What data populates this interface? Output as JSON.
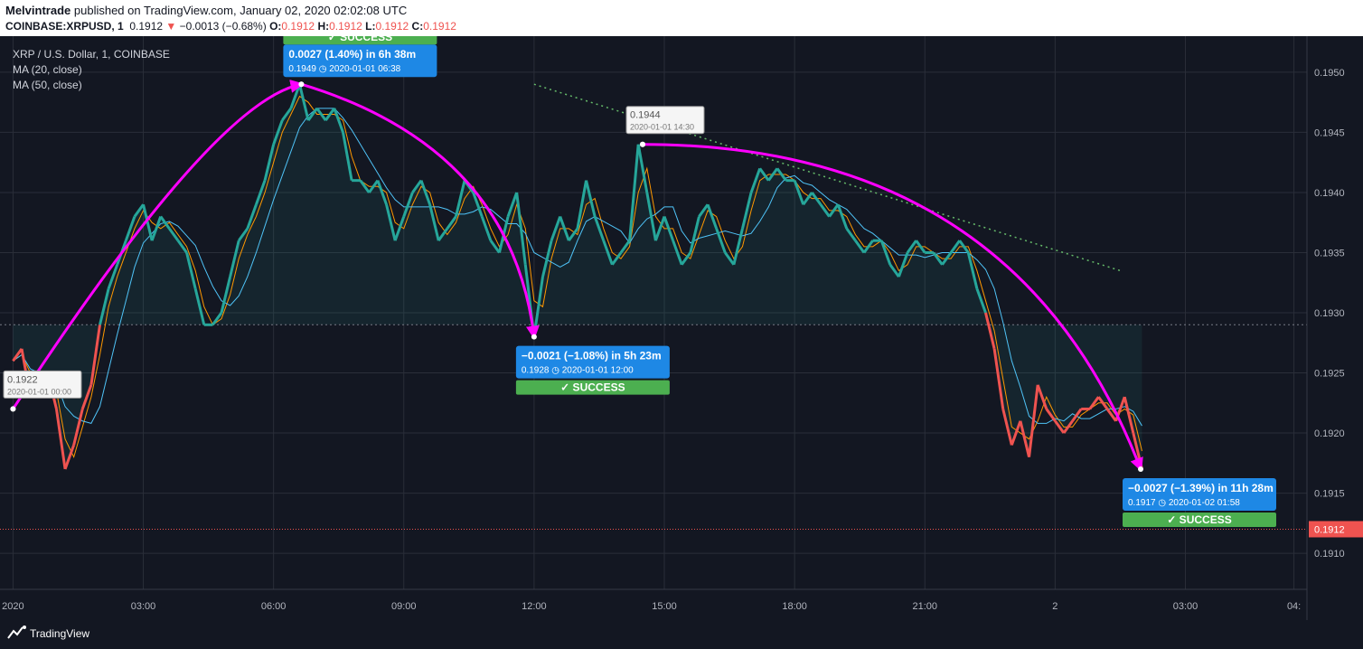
{
  "header": {
    "author": "Melvintrade",
    "published": "published on TradingView.com, January 02, 2020 02:02:08 UTC",
    "symbol": "COINBASE:XRPUSD, 1",
    "last": "0.1912",
    "change": "−0.0013 (−0.68%)",
    "o_label": "O:",
    "o": "0.1912",
    "h_label": "H:",
    "h": "0.1912",
    "l_label": "L:",
    "l": "0.1912",
    "c_label": "C:",
    "c": "0.1912"
  },
  "legend": {
    "title": "XRP / U.S. Dollar, 1, COINBASE",
    "ma20": "MA (20, close)",
    "ma50": "MA (50, close)"
  },
  "footer": {
    "brand": "TradingView"
  },
  "colors": {
    "background": "#131722",
    "up": "#26a69a",
    "down": "#ef5350",
    "ma20": "#ff9800",
    "ma50": "#4fc3f7",
    "annotation_curve": "#ff00ff",
    "callout": "#1e88e5",
    "success": "#4caf50",
    "trendline": "#66bb6a"
  },
  "chart_data": {
    "type": "line",
    "title": "XRP / U.S. Dollar, 1, COINBASE",
    "ylim": [
      0.1907,
      0.1953
    ],
    "y_ticks": [
      "0.1910",
      "0.1915",
      "0.1920",
      "0.1925",
      "0.1930",
      "0.1935",
      "0.1940",
      "0.1945",
      "0.1950"
    ],
    "x_ticks": [
      "2020",
      "03:00",
      "06:00",
      "09:00",
      "12:00",
      "15:00",
      "18:00",
      "21:00",
      "2",
      "03:00",
      "04:"
    ],
    "x_tick_hours": [
      0,
      3,
      6,
      9,
      12,
      15,
      18,
      21,
      24,
      27,
      29.5
    ],
    "x_range_hours": [
      -0.3,
      29.8
    ],
    "baseline": 0.1929,
    "last_price": {
      "value": 0.1912,
      "label": "0.1912"
    },
    "price_series": {
      "name": "XRPUSD",
      "x_hours": [
        0,
        0.2,
        0.4,
        0.6,
        0.8,
        1.0,
        1.2,
        1.4,
        1.6,
        1.8,
        2.0,
        2.2,
        2.4,
        2.6,
        2.8,
        3.0,
        3.2,
        3.4,
        3.6,
        3.8,
        4.0,
        4.2,
        4.4,
        4.6,
        4.8,
        5.0,
        5.2,
        5.4,
        5.6,
        5.8,
        6.0,
        6.2,
        6.4,
        6.6,
        6.8,
        7.0,
        7.2,
        7.4,
        7.6,
        7.8,
        8.0,
        8.2,
        8.4,
        8.6,
        8.8,
        9.0,
        9.2,
        9.4,
        9.6,
        9.8,
        10.0,
        10.2,
        10.4,
        10.6,
        10.8,
        11.0,
        11.2,
        11.4,
        11.6,
        11.8,
        12.0,
        12.2,
        12.4,
        12.6,
        12.8,
        13.0,
        13.2,
        13.4,
        13.6,
        13.8,
        14.0,
        14.2,
        14.4,
        14.6,
        14.8,
        15.0,
        15.2,
        15.4,
        15.6,
        15.8,
        16.0,
        16.2,
        16.4,
        16.6,
        16.8,
        17.0,
        17.2,
        17.4,
        17.6,
        17.8,
        18.0,
        18.2,
        18.4,
        18.6,
        18.8,
        19.0,
        19.2,
        19.4,
        19.6,
        19.8,
        20.0,
        20.2,
        20.4,
        20.6,
        20.8,
        21.0,
        21.2,
        21.4,
        21.6,
        21.8,
        22.0,
        22.2,
        22.4,
        22.6,
        22.8,
        23.0,
        23.2,
        23.4,
        23.6,
        23.8,
        24.0,
        24.2,
        24.4,
        24.6,
        24.8,
        25.0,
        25.2,
        25.4,
        25.6,
        25.8,
        26.0
      ],
      "values": [
        0.1926,
        0.1927,
        0.1923,
        0.1924,
        0.1925,
        0.1922,
        0.1917,
        0.1919,
        0.1922,
        0.1924,
        0.1929,
        0.1932,
        0.1934,
        0.1936,
        0.1938,
        0.1939,
        0.1936,
        0.1938,
        0.1937,
        0.1936,
        0.1935,
        0.1932,
        0.1929,
        0.1929,
        0.193,
        0.1933,
        0.1936,
        0.1937,
        0.1939,
        0.1941,
        0.1944,
        0.1946,
        0.1947,
        0.1949,
        0.1946,
        0.1947,
        0.1946,
        0.1947,
        0.1945,
        0.1941,
        0.1941,
        0.194,
        0.1941,
        0.1939,
        0.1936,
        0.1938,
        0.194,
        0.1941,
        0.1939,
        0.1936,
        0.1937,
        0.1938,
        0.1941,
        0.194,
        0.1938,
        0.1936,
        0.1935,
        0.1938,
        0.194,
        0.1934,
        0.1928,
        0.1933,
        0.1936,
        0.1938,
        0.1936,
        0.1937,
        0.1941,
        0.1938,
        0.1936,
        0.1934,
        0.1935,
        0.1936,
        0.1944,
        0.194,
        0.1936,
        0.1938,
        0.1936,
        0.1934,
        0.1935,
        0.1938,
        0.1939,
        0.1937,
        0.1935,
        0.1934,
        0.1937,
        0.194,
        0.1942,
        0.1941,
        0.1942,
        0.1941,
        0.1941,
        0.1939,
        0.194,
        0.1939,
        0.1938,
        0.1939,
        0.1937,
        0.1936,
        0.1935,
        0.1936,
        0.1936,
        0.1934,
        0.1933,
        0.1935,
        0.1936,
        0.1935,
        0.1935,
        0.1934,
        0.1935,
        0.1936,
        0.1935,
        0.1932,
        0.193,
        0.1927,
        0.1922,
        0.1919,
        0.1921,
        0.1918,
        0.1924,
        0.1922,
        0.1921,
        0.192,
        0.1921,
        0.1922,
        0.1922,
        0.1923,
        0.1922,
        0.1921,
        0.1923,
        0.192,
        0.1917
      ]
    },
    "annotations": [
      {
        "from": {
          "x_hours": 0.0,
          "y": 0.1922
        },
        "to": {
          "x_hours": 6.64,
          "y": 0.1949
        },
        "label": "0.0027 (1.40%) in 6h 38m",
        "detail": "0.1949 ◷ 2020-01-01  06:38",
        "status": "✓ SUCCESS"
      },
      {
        "from": {
          "x_hours": 6.64,
          "y": 0.1949
        },
        "to": {
          "x_hours": 12.0,
          "y": 0.1928
        },
        "label": "−0.0021 (−1.08%) in 5h 23m",
        "detail": "0.1928 ◷ 2020-01-01  12:00",
        "status": "✓ SUCCESS"
      },
      {
        "from": {
          "x_hours": 14.5,
          "y": 0.1944
        },
        "to": {
          "x_hours": 25.97,
          "y": 0.1917
        },
        "label": "−0.0027 (−1.39%) in 11h 28m",
        "detail": "0.1917 ◷ 2020-01-02  01:58",
        "status": "✓ SUCCESS"
      }
    ],
    "point_labels": [
      {
        "x_hours": 0.0,
        "y": 0.1922,
        "value": "0.1922",
        "time": "2020-01-01 00:00"
      },
      {
        "x_hours": 14.5,
        "y": 0.1944,
        "value": "0.1944",
        "time": "2020-01-01 14:30"
      }
    ],
    "trendline": {
      "from": {
        "x_hours": 12.0,
        "y": 0.1949
      },
      "to": {
        "x_hours": 25.5,
        "y": 0.19335
      }
    },
    "grid": true,
    "legend_position": "top-left"
  }
}
